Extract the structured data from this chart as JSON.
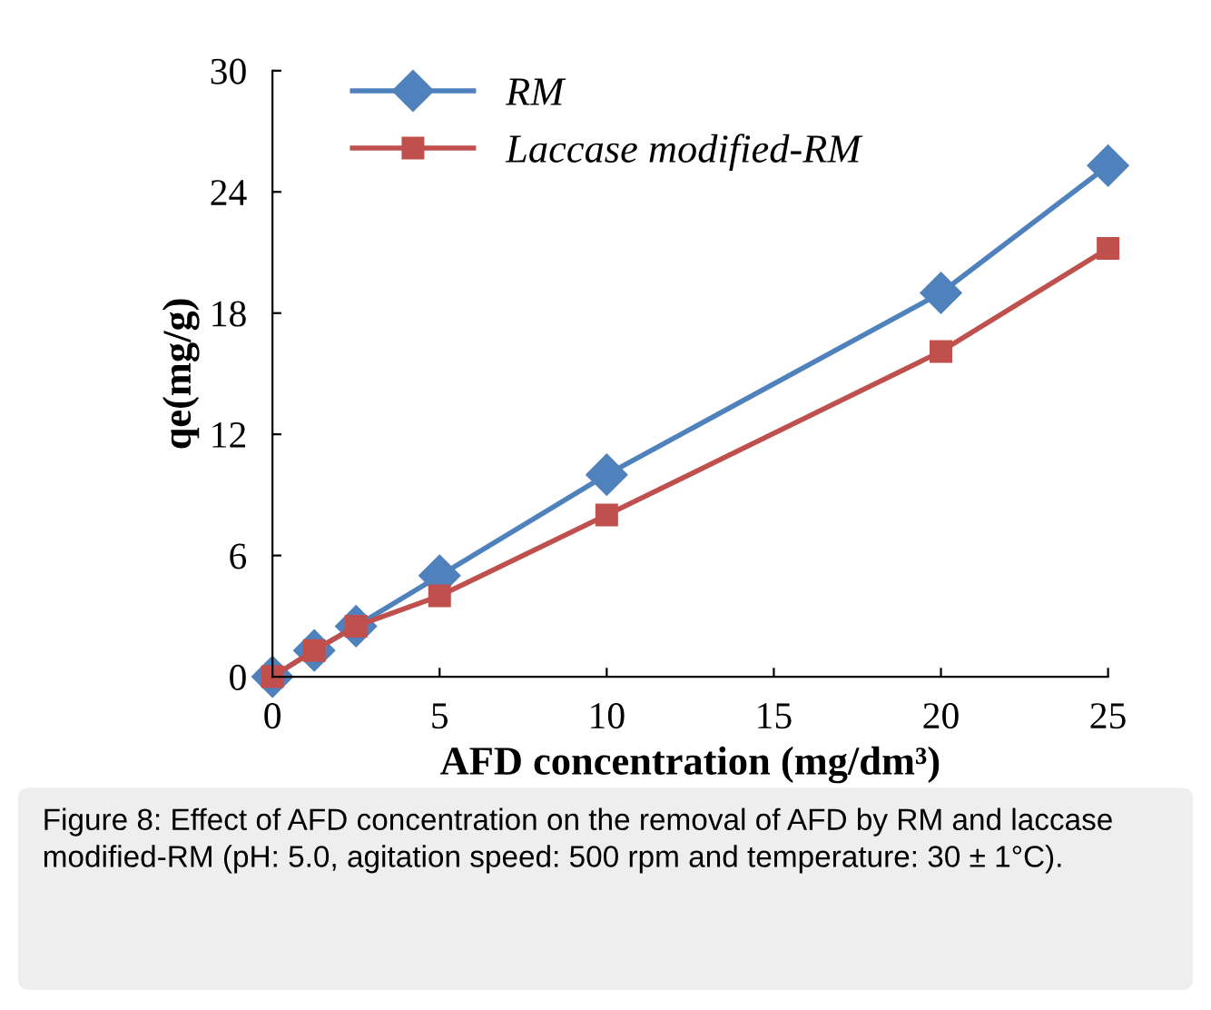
{
  "chart_data": {
    "type": "line",
    "xlabel": "AFD concentration (mg/dm³)",
    "ylabel": "qe(mg/g)",
    "xlim": [
      0,
      25
    ],
    "xticks": [
      0,
      5,
      10,
      15,
      20,
      25
    ],
    "ylim": [
      0,
      30
    ],
    "yticks": [
      0,
      6,
      12,
      18,
      24,
      30
    ],
    "series": [
      {
        "name": "RM",
        "color": "#4f81bd",
        "marker": "diamond",
        "x": [
          0,
          1.25,
          2.5,
          5,
          10,
          20,
          25
        ],
        "values": [
          0,
          1.3,
          2.5,
          5.0,
          10.0,
          19.0,
          25.3
        ]
      },
      {
        "name": "Laccase modified-RM",
        "color": "#c0504d",
        "marker": "square",
        "x": [
          0,
          1.25,
          2.5,
          5,
          10,
          20,
          25
        ],
        "values": [
          0,
          1.3,
          2.5,
          4.0,
          8.0,
          16.1,
          21.2
        ]
      }
    ],
    "legend": "top",
    "grid": false,
    "annotations": [
      "Figure 8: Effect of AFD concentration on the removal of AFD by RM and laccase modified-RM (pH: 5.0, agitation speed: 500 rpm and temperature: 30 ± 1°C)."
    ]
  }
}
